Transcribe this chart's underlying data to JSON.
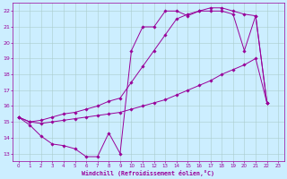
{
  "xlabel": "Windchill (Refroidissement éolien,°C)",
  "bg_color": "#cceeff",
  "grid_color": "#aacccc",
  "line_color": "#990099",
  "xlim": [
    -0.5,
    23.5
  ],
  "ylim": [
    12.5,
    22.5
  ],
  "yticks": [
    13,
    14,
    15,
    16,
    17,
    18,
    19,
    20,
    21,
    22
  ],
  "xticks": [
    0,
    1,
    2,
    3,
    4,
    5,
    6,
    7,
    8,
    9,
    10,
    11,
    12,
    13,
    14,
    15,
    16,
    17,
    18,
    19,
    20,
    21,
    22,
    23
  ],
  "line1_x": [
    0,
    1,
    2,
    3,
    4,
    5,
    6,
    7,
    8,
    9,
    10,
    11,
    12,
    13,
    14,
    15,
    16,
    17,
    18,
    19,
    20,
    21,
    22
  ],
  "line1_y": [
    15.3,
    14.8,
    14.1,
    13.6,
    13.5,
    13.3,
    12.8,
    12.8,
    14.3,
    13.0,
    19.5,
    21.0,
    21.0,
    22.0,
    22.0,
    21.7,
    22.0,
    22.0,
    22.0,
    21.8,
    19.5,
    21.7,
    16.2
  ],
  "line2_x": [
    0,
    1,
    2,
    3,
    4,
    5,
    6,
    7,
    8,
    9,
    10,
    11,
    12,
    13,
    14,
    15,
    16,
    17,
    18,
    19,
    20,
    21,
    22
  ],
  "line2_y": [
    15.3,
    15.0,
    14.9,
    15.0,
    15.1,
    15.2,
    15.3,
    15.4,
    15.5,
    15.6,
    15.8,
    16.0,
    16.2,
    16.4,
    16.7,
    17.0,
    17.3,
    17.6,
    18.0,
    18.3,
    18.6,
    19.0,
    16.2
  ],
  "line3_x": [
    0,
    1,
    2,
    3,
    4,
    5,
    6,
    7,
    8,
    9,
    10,
    11,
    12,
    13,
    14,
    15,
    16,
    17,
    18,
    19,
    20,
    21,
    22
  ],
  "line3_y": [
    15.3,
    15.0,
    15.1,
    15.3,
    15.5,
    15.6,
    15.8,
    16.0,
    16.3,
    16.5,
    17.5,
    18.5,
    19.5,
    20.5,
    21.5,
    21.8,
    22.0,
    22.2,
    22.2,
    22.0,
    21.8,
    21.7,
    16.2
  ]
}
